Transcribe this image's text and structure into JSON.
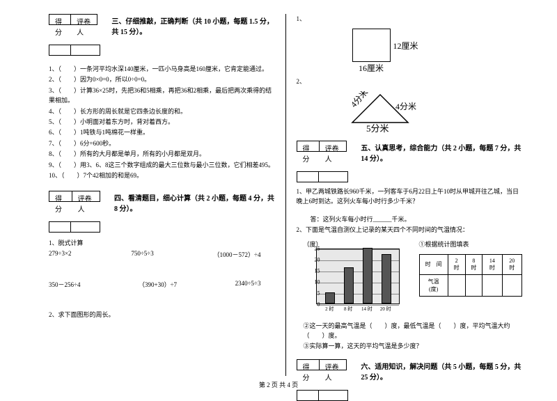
{
  "scorebox": {
    "score": "得分",
    "grader": "评卷人"
  },
  "sec3": {
    "title": "三、仔细推敲，正确判断（共 10 小题，每题 1.5 分，共 15 分）。",
    "items": [
      "一条河平均水深140厘米，一匹小马身高是160厘米，它肯定能通过。",
      "因为0×0=0，所以0÷0=0。",
      "计算36×25时，先把36和5相乘，再把36和2相乘，最后把两次乘得的结果相加。",
      "长方形的周长就是它四条边长度的和。",
      "小明面对着东方时，背对着西方。",
      "1吨铁与1吨棉花一样重。",
      "6分=600秒。",
      "所有的大月都是单月，所有的小月都是双月。",
      "用3、6、8这三个数字组成的最大三位数与最小三位数，它们相差495。",
      "7个42相加的和是69。"
    ]
  },
  "sec4": {
    "title": "四、看清题目，细心计算（共 2 小题，每题 4 分，共 8 分）。",
    "sub1": "1、脱式计算",
    "row1": [
      "279÷3×2",
      "750÷5÷3",
      "（1000－572）÷4"
    ],
    "row2": [
      "350－256÷4",
      "（390+30）÷7",
      "2340÷5÷3"
    ],
    "sub2": "2、求下面图形的周长。"
  },
  "fig_sq": {
    "num": "1、",
    "side_r": "12厘米",
    "side_b": "16厘米",
    "size": 55
  },
  "fig_tri": {
    "num": "2、",
    "left": "4分米",
    "right": "4分米",
    "bottom": "5分米"
  },
  "sec5": {
    "title": "五、认真思考，综合能力（共 2 小题，每题 7 分，共 14 分）。",
    "q1": "1、甲乙两城铁路长960千米，一列客车于6月22日上午10时从甲城开往乙城，当日晚上6时到达。这列火车每小时行多少千米？",
    "ans1": "答：这列火车每小时行______千米。",
    "q2": "2、下面是气温自测仪上记录的某天四个不同时间的气温情况：",
    "chart": {
      "ylabel": "（度）",
      "ytitle": "①根据统计图填表",
      "yticks": [
        0,
        5,
        10,
        15,
        20,
        25
      ],
      "ymax": 25,
      "xlabels": [
        "2 时",
        "8 时",
        "14 时",
        "20 时"
      ],
      "bars": [
        5,
        16,
        25,
        22
      ],
      "bar_color": "#555555",
      "bg": "#e8e8e8"
    },
    "table": {
      "h1": "时　间",
      "c1": "2时",
      "c2": "8时",
      "c3": "14时",
      "c4": "20时",
      "h2": "气温(度)"
    },
    "q2b": "②这一天的最高气温是（　　）度，最低气温是（　　）度，平均气温大约（　　）度。",
    "q2c": "③实际算一算，这天的平均气温是多少度？"
  },
  "sec6": {
    "title": "六、适用知识，解决问题（共 5 小题，每题 5 分，共 25 分）。"
  },
  "footer": "第 2 页 共 4 页"
}
